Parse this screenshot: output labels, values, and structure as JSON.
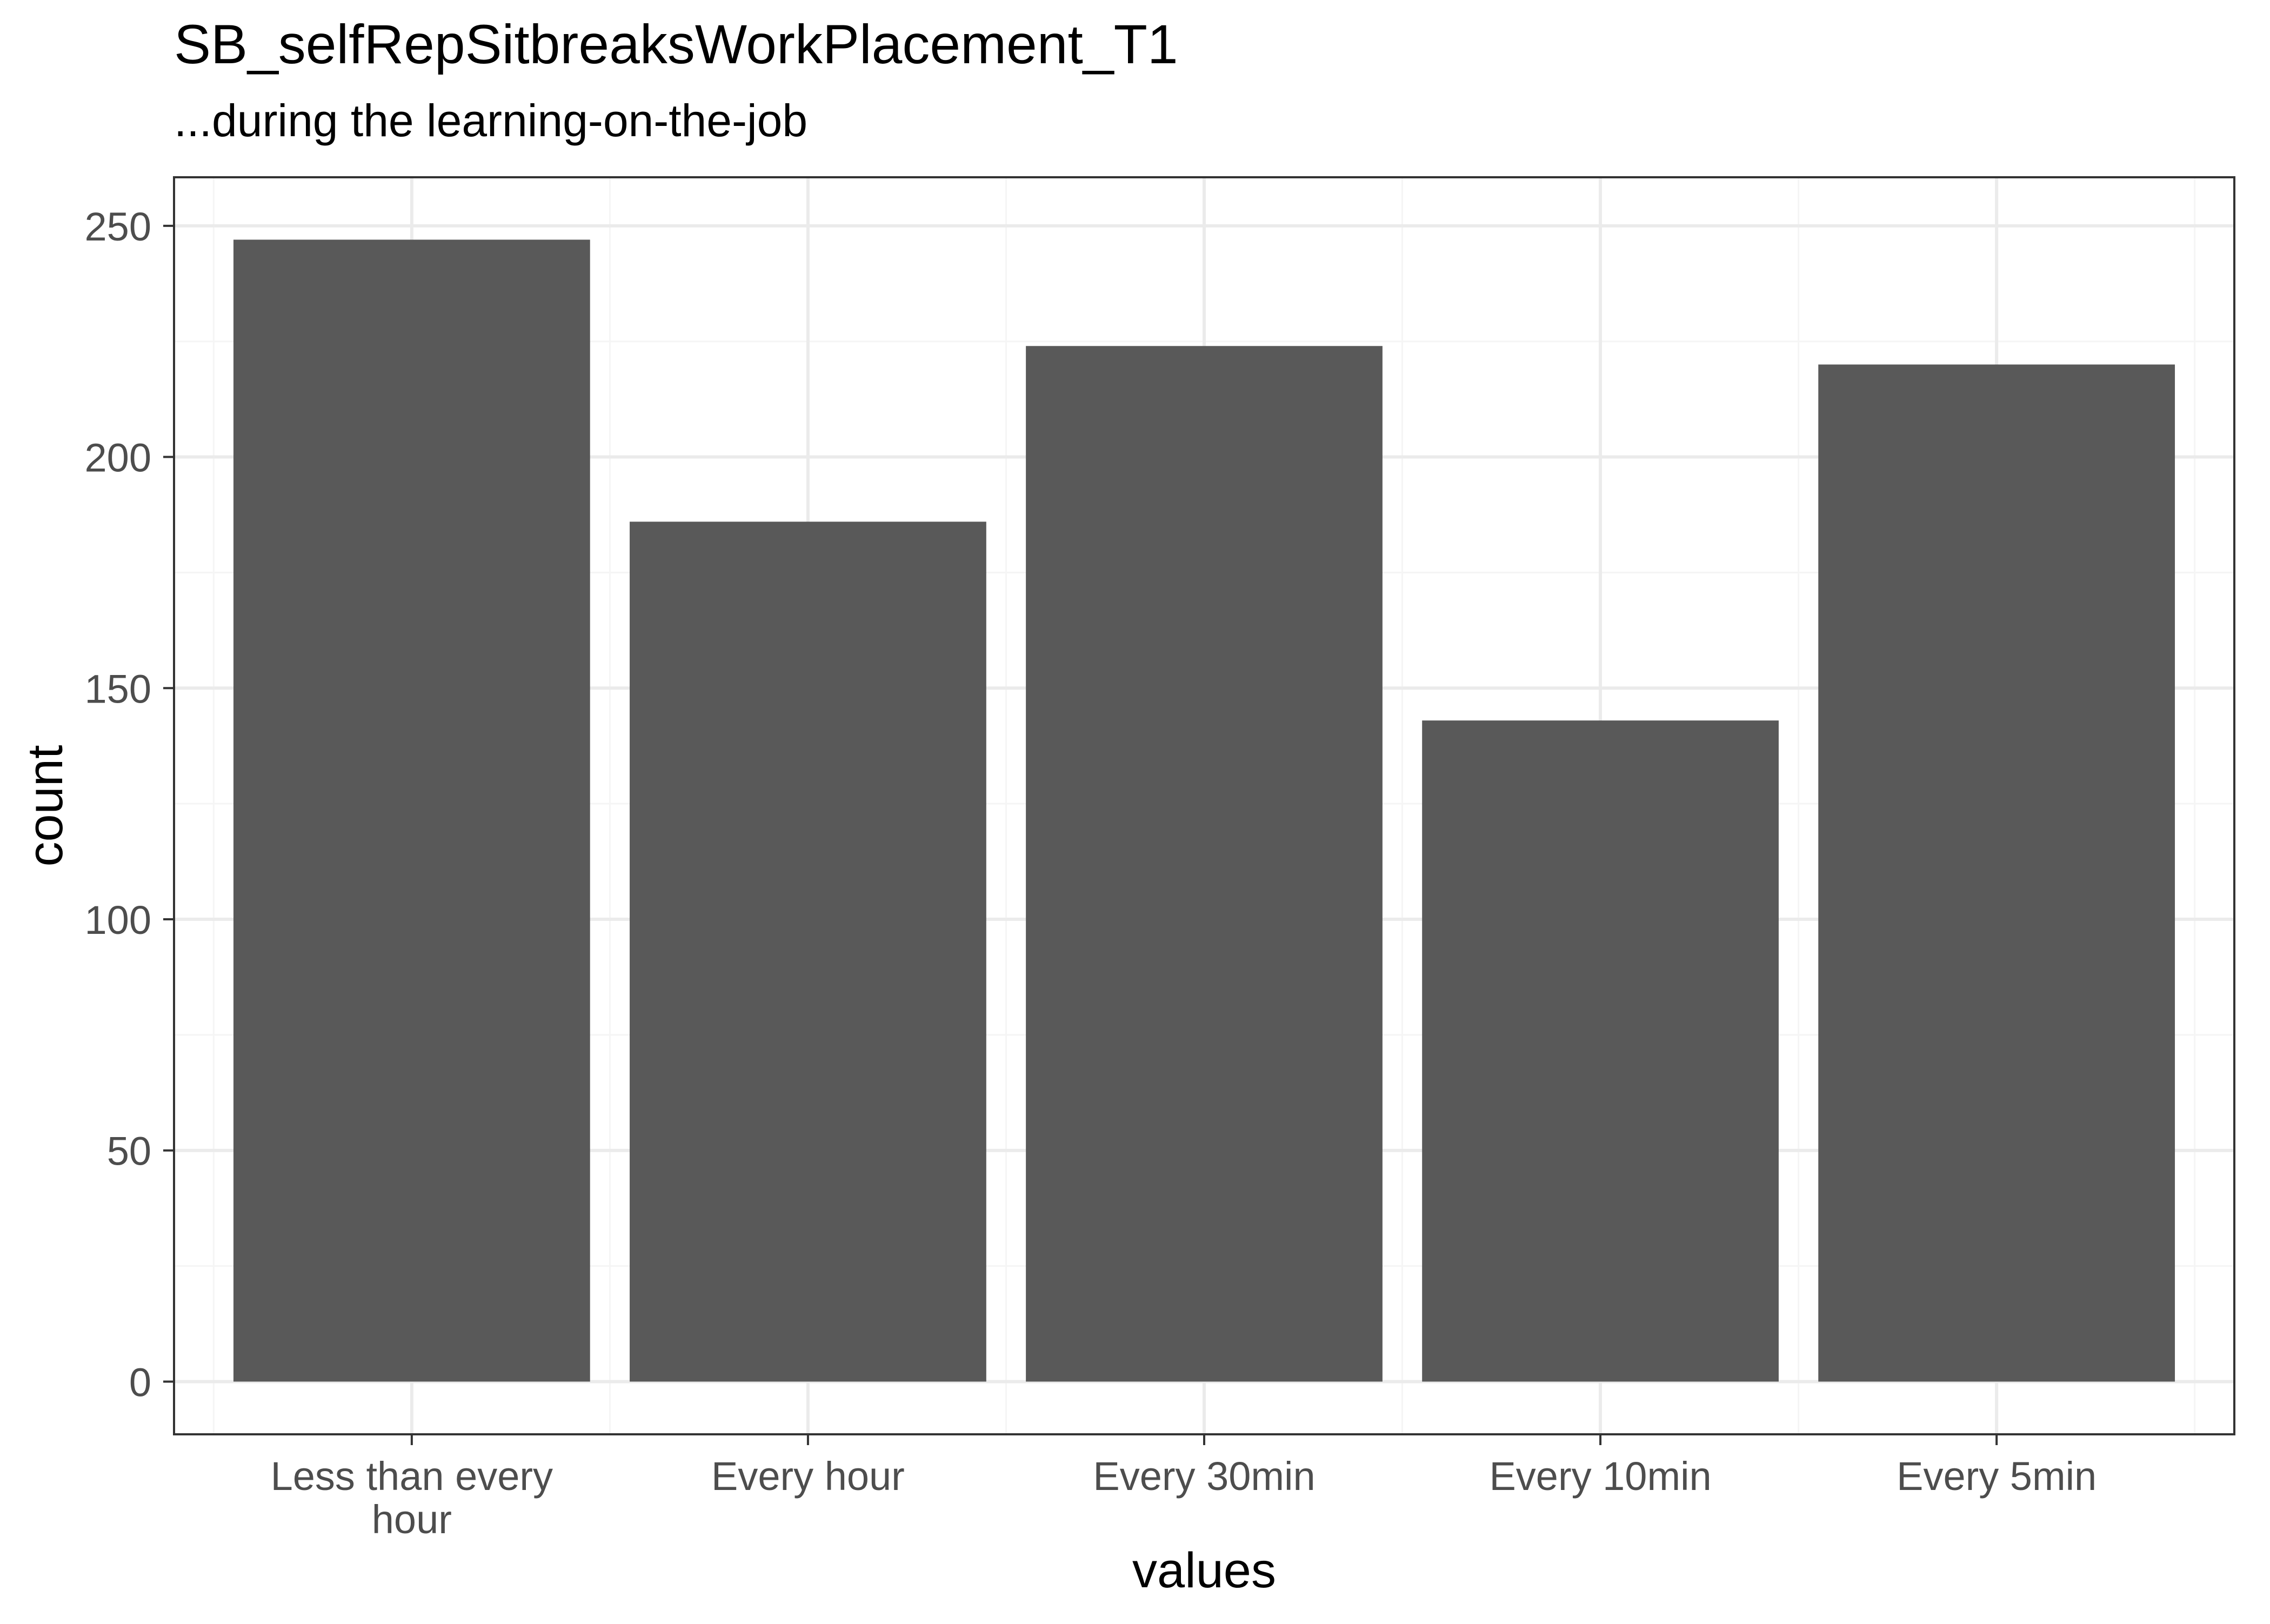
{
  "chart_data": {
    "type": "bar",
    "title": "SB_selfRepSitbreaksWorkPlacement_T1",
    "subtitle": "...during the learning-on-the-job",
    "xlabel": "values",
    "ylabel": "count",
    "categories": [
      [
        "Less than every",
        "hour"
      ],
      [
        "Every hour"
      ],
      [
        "Every 30min"
      ],
      [
        "Every 10min"
      ],
      [
        "Every 5min"
      ]
    ],
    "values": [
      247,
      186,
      224,
      143,
      220
    ],
    "ylim": [
      -11.4,
      260.5
    ],
    "yticks": [
      0,
      50,
      100,
      150,
      200,
      250
    ],
    "grid": true,
    "legend": "none",
    "colors": {
      "bar": "#595959",
      "panel_border": "#333333",
      "grid_major": "#ebebeb",
      "grid_minor": "#f5f5f5",
      "tick_text": "#4d4d4d",
      "text": "#000000"
    }
  }
}
